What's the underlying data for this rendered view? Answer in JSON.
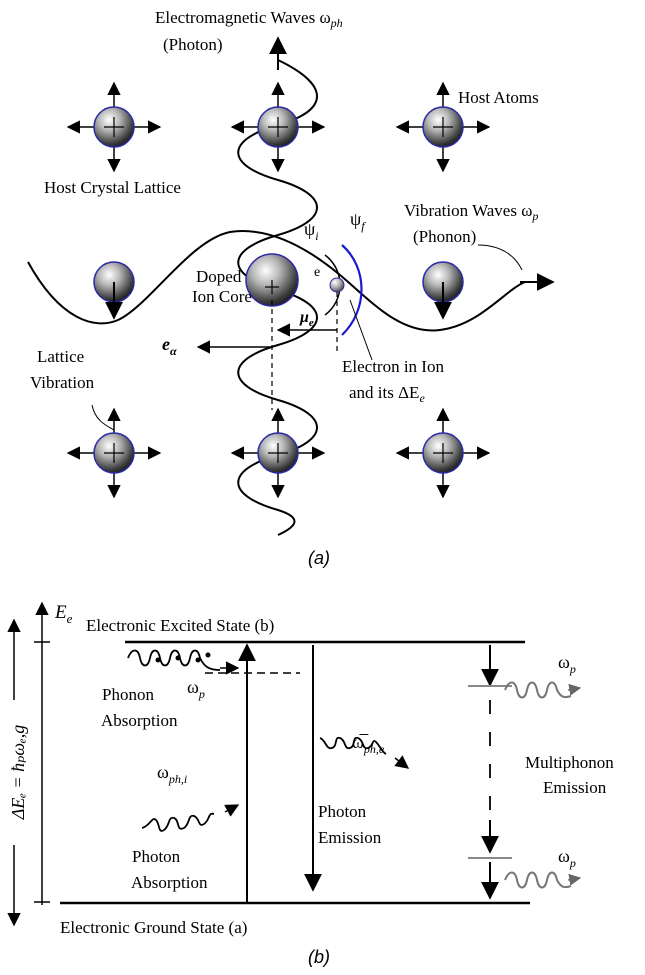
{
  "panel_a": {
    "caption": "(a)",
    "em_waves_title": "Electromagnetic Waves ω",
    "em_waves_sub": "ph",
    "photon_label": "(Photon)",
    "host_atoms_label": "Host Atoms",
    "host_lattice_label": "Host Crystal Lattice",
    "vibration_title": "Vibration Waves ω",
    "vibration_sub": "p",
    "phonon_label": "(Phonon)",
    "doped_label_1": "Doped",
    "doped_label_2": "Ion Core",
    "psi_i": "ψ",
    "psi_i_sub": "i",
    "psi_f": "ψ",
    "psi_f_sub": "f",
    "electron_symbol": "e",
    "mu_e": "μ",
    "mu_e_sub": "e",
    "e_alpha": "e",
    "e_alpha_sub": "α",
    "electron_label_1": "Electron in Ion",
    "electron_label_2": "and its ΔE",
    "electron_label_2_sub": "e",
    "lattice_label_1": "Lattice",
    "lattice_label_2": "Vibration"
  },
  "panel_b": {
    "caption": "(b)",
    "ee_axis": "E",
    "ee_axis_sub": "e",
    "delta_e_label": "ΔEₑ = ħₚωₑ,g",
    "excited_state": "Electronic Excited State (b)",
    "ground_state": "Electronic Ground State (a)",
    "phonon_absorption_1": "Phonon",
    "phonon_absorption_2": "Absorption",
    "omega_p": "ω",
    "omega_p_sub": "p",
    "omega_ph_i": "ω",
    "omega_ph_i_sub": "ph,i",
    "photon_absorption_1": "Photon",
    "photon_absorption_2": "Absorption",
    "omega_bar_ph_e": "ω̅",
    "omega_bar_ph_e_sub": "ph,e",
    "photon_emission_1": "Photon",
    "photon_emission_2": "Emission",
    "multiphonon_1": "Multiphonon",
    "multiphonon_2": "Emission",
    "omega_p_top": "ω",
    "omega_p_top_sub": "p",
    "omega_p_bottom": "ω",
    "omega_p_bottom_sub": "p"
  }
}
